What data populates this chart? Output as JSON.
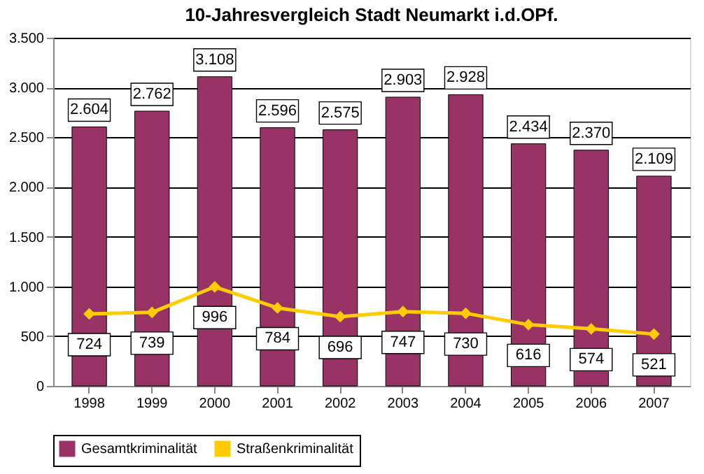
{
  "chart_data": {
    "type": "bar",
    "title": "10-Jahresvergleich Stadt Neumarkt i.d.OPf.",
    "categories": [
      "1998",
      "1999",
      "2000",
      "2001",
      "2002",
      "2003",
      "2004",
      "2005",
      "2006",
      "2007"
    ],
    "series": [
      {
        "name": "Gesamtkriminalität",
        "color": "#993366",
        "values": [
          2604,
          2762,
          3108,
          2596,
          2575,
          2903,
          2928,
          2434,
          2370,
          2109
        ],
        "value_labels": [
          "2.604",
          "2.762",
          "3.108",
          "2.596",
          "2.575",
          "2.903",
          "2.928",
          "2.434",
          "2.370",
          "2.109"
        ]
      },
      {
        "name": "Straßenkriminalität",
        "type": "line",
        "color": "#ffcc00",
        "values": [
          724,
          739,
          996,
          784,
          696,
          747,
          730,
          616,
          574,
          521
        ],
        "value_labels": [
          "724",
          "739",
          "996",
          "784",
          "696",
          "747",
          "730",
          "616",
          "574",
          "521"
        ]
      }
    ],
    "ylim": [
      0,
      3500
    ],
    "yticks": [
      0,
      {
        "value": 500,
        "label": "500"
      },
      {
        "value": 1000,
        "label": "1.000"
      },
      {
        "value": 1500,
        "label": "1.500"
      },
      {
        "value": 2000,
        "label": "2.000"
      },
      {
        "value": 2500,
        "label": "2.500"
      },
      {
        "value": 3000,
        "label": "3.000"
      },
      {
        "value": 3500,
        "label": "3.500"
      }
    ],
    "grid": "y",
    "legend": "bottom",
    "marker": "diamond"
  }
}
